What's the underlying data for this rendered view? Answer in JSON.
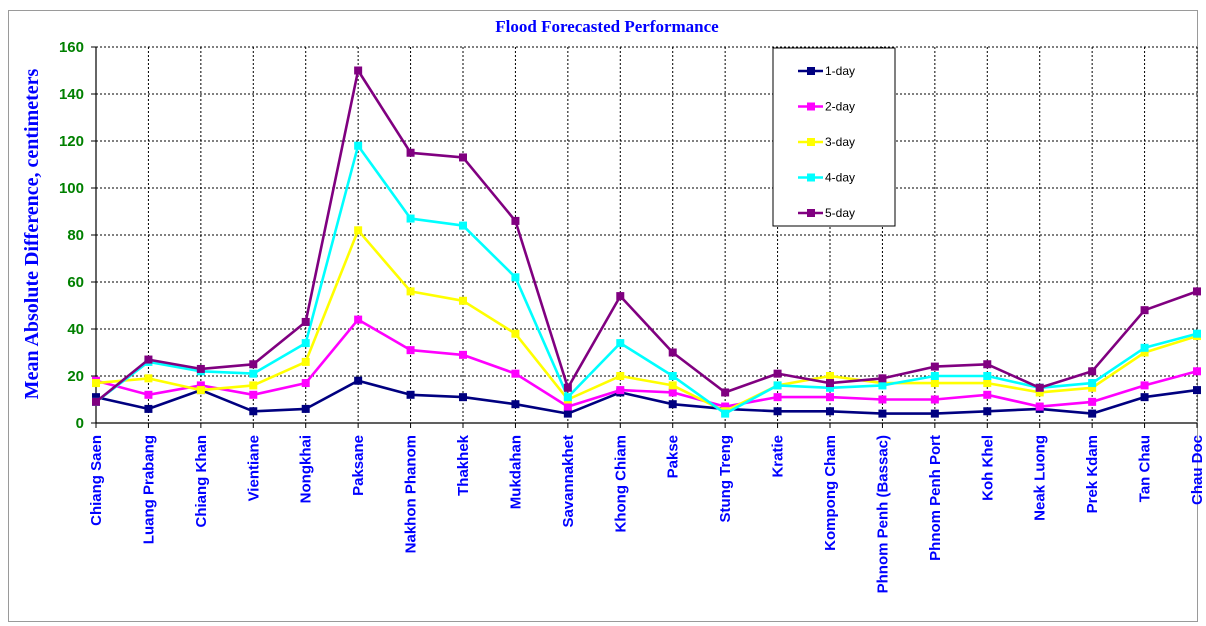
{
  "chart_data": {
    "type": "line",
    "title": "Flood Forecasted Performance",
    "ylabel": "Mean Absolute Difference, centimeters",
    "xlabel": "",
    "ylim": [
      0,
      160
    ],
    "yticks": [
      0,
      20,
      40,
      60,
      80,
      100,
      120,
      140,
      160
    ],
    "grid": "dashed",
    "legend": "top-right",
    "categories": [
      "Chiang Saen",
      "Luang Prabang",
      "Chiang Khan",
      "Vientiane",
      "Nongkhai",
      "Paksane",
      "Nakhon Phanom",
      "Thakhek",
      "Mukdahan",
      "Savannakhet",
      "Khong Chiam",
      "Pakse",
      "Stung Treng",
      "Kratie",
      "Kompong Cham",
      "Phnom Penh (Bassac)",
      "Phnom Penh Port",
      "Koh Khel",
      "Neak Luong",
      "Prek Kdam",
      "Tan Chau",
      "Chau Doc"
    ],
    "series": [
      {
        "name": "1-day",
        "color": "#000080",
        "values": [
          11,
          6,
          14,
          5,
          6,
          18,
          12,
          11,
          8,
          4,
          13,
          8,
          6,
          5,
          5,
          4,
          4,
          5,
          6,
          4,
          11,
          14
        ]
      },
      {
        "name": "2-day",
        "color": "#ff00ff",
        "values": [
          18,
          12,
          16,
          12,
          17,
          44,
          31,
          29,
          21,
          7,
          14,
          13,
          7,
          11,
          11,
          10,
          10,
          12,
          7,
          9,
          16,
          22
        ]
      },
      {
        "name": "3-day",
        "color": "#ffff00",
        "values": [
          17,
          19,
          14,
          16,
          26,
          82,
          56,
          52,
          38,
          10,
          20,
          16,
          5,
          16,
          20,
          17,
          17,
          17,
          13,
          15,
          30,
          37
        ]
      },
      {
        "name": "4-day",
        "color": "#00ffff",
        "values": [
          9,
          26,
          22,
          21,
          34,
          118,
          87,
          84,
          62,
          11,
          34,
          20,
          4,
          16,
          15,
          16,
          20,
          20,
          15,
          17,
          32,
          38
        ]
      },
      {
        "name": "5-day",
        "color": "#800080",
        "values": [
          9,
          27,
          23,
          25,
          43,
          150,
          115,
          113,
          86,
          15,
          54,
          30,
          13,
          21,
          17,
          19,
          24,
          25,
          15,
          22,
          48,
          56
        ]
      }
    ]
  }
}
